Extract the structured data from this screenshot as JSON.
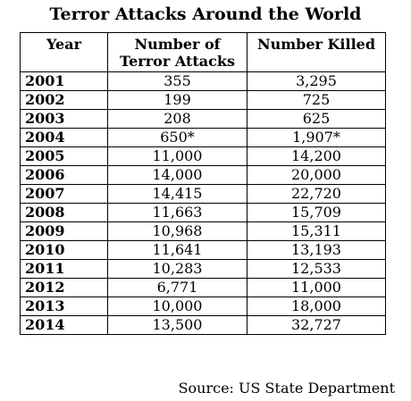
{
  "title": "Terror Attacks Around the World",
  "table": {
    "headers": {
      "year": "Year",
      "attacks_line1": "Number of",
      "attacks_line2": "Terror Attacks",
      "killed": "Number Killed"
    },
    "rows": [
      {
        "year": "2001",
        "attacks": "355",
        "killed": "3,295"
      },
      {
        "year": "2002",
        "attacks": "199",
        "killed": "725"
      },
      {
        "year": "2003",
        "attacks": "208",
        "killed": "625"
      },
      {
        "year": "2004",
        "attacks": "650*",
        "killed": "1,907*"
      },
      {
        "year": "2005",
        "attacks": "11,000",
        "killed": "14,200"
      },
      {
        "year": "2006",
        "attacks": "14,000",
        "killed": "20,000"
      },
      {
        "year": "2007",
        "attacks": "14,415",
        "killed": "22,720"
      },
      {
        "year": "2008",
        "attacks": "11,663",
        "killed": "15,709"
      },
      {
        "year": "2009",
        "attacks": "10,968",
        "killed": "15,311"
      },
      {
        "year": "2010",
        "attacks": "11,641",
        "killed": "13,193"
      },
      {
        "year": "2011",
        "attacks": "10,283",
        "killed": "12,533"
      },
      {
        "year": "2012",
        "attacks": "6,771",
        "killed": "11,000"
      },
      {
        "year": "2013",
        "attacks": "10,000",
        "killed": "18,000"
      },
      {
        "year": "2014",
        "attacks": "13,500",
        "killed": "32,727"
      }
    ]
  },
  "source": "Source: US State Department"
}
